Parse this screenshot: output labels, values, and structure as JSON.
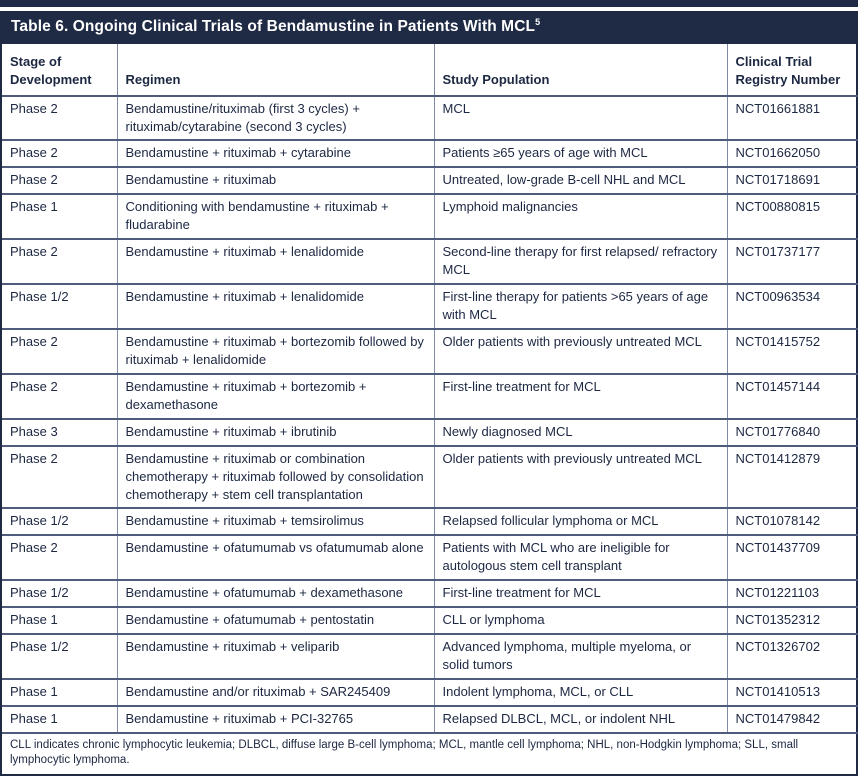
{
  "table": {
    "title": "Table 6. Ongoing Clinical Trials of Bendamustine in Patients With MCL",
    "title_reference": "5",
    "columns": {
      "stage": "Stage of Development",
      "regimen": "Regimen",
      "population": "Study Population",
      "registry": "Clinical Trial Registry Number"
    },
    "rows": [
      {
        "stage": "Phase 2",
        "regimen": "Bendamustine/rituximab (first 3 cycles) + rituximab/cytarabine (second 3 cycles)",
        "population": "MCL",
        "registry": "NCT01661881"
      },
      {
        "stage": "Phase 2",
        "regimen": "Bendamustine + rituximab + cytarabine",
        "population": "Patients ≥65 years of age with MCL",
        "registry": "NCT01662050"
      },
      {
        "stage": "Phase 2",
        "regimen": "Bendamustine + rituximab",
        "population": "Untreated, low-grade B-cell NHL and MCL",
        "registry": "NCT01718691"
      },
      {
        "stage": "Phase 1",
        "regimen": "Conditioning with bendamustine + rituximab + fludarabine",
        "population": "Lymphoid malignancies",
        "registry": "NCT00880815"
      },
      {
        "stage": "Phase 2",
        "regimen": "Bendamustine + rituximab + lenalidomide",
        "population": "Second-line therapy for first relapsed/ refractory MCL",
        "registry": "NCT01737177"
      },
      {
        "stage": "Phase 1/2",
        "regimen": "Bendamustine + rituximab + lenalidomide",
        "population": "First-line therapy for patients >65 years of age with MCL",
        "registry": "NCT00963534"
      },
      {
        "stage": "Phase 2",
        "regimen": "Bendamustine + rituximab + bortezomib followed by rituximab + lenalidomide",
        "population": "Older patients with previously untreated MCL",
        "registry": "NCT01415752"
      },
      {
        "stage": "Phase 2",
        "regimen": "Bendamustine + rituximab + bortezomib + dexamethasone",
        "population": "First-line treatment for MCL",
        "registry": "NCT01457144"
      },
      {
        "stage": "Phase 3",
        "regimen": "Bendamustine + rituximab + ibrutinib",
        "population": "Newly diagnosed MCL",
        "registry": "NCT01776840"
      },
      {
        "stage": "Phase 2",
        "regimen": "Bendamustine + rituximab or combination chemotherapy + rituximab followed by consolidation chemotherapy + stem cell transplantation",
        "population": "Older patients with previously untreated MCL",
        "registry": "NCT01412879"
      },
      {
        "stage": "Phase 1/2",
        "regimen": "Bendamustine + rituximab + temsirolimus",
        "population": "Relapsed follicular lymphoma or MCL",
        "registry": "NCT01078142"
      },
      {
        "stage": "Phase 2",
        "regimen": "Bendamustine + ofatumumab vs ofatumumab alone",
        "population": "Patients with MCL who are ineligible for autologous stem cell transplant",
        "registry": "NCT01437709"
      },
      {
        "stage": "Phase 1/2",
        "regimen": "Bendamustine + ofatumumab + dexamethasone",
        "population": "First-line treatment for MCL",
        "registry": "NCT01221103"
      },
      {
        "stage": "Phase 1",
        "regimen": "Bendamustine + ofatumumab + pentostatin",
        "population": "CLL or lymphoma",
        "registry": "NCT01352312"
      },
      {
        "stage": "Phase 1/2",
        "regimen": "Bendamustine + rituximab + veliparib",
        "population": "Advanced lymphoma, multiple myeloma, or solid tumors",
        "registry": "NCT01326702"
      },
      {
        "stage": "Phase 1",
        "regimen": "Bendamustine and/or rituximab + SAR245409",
        "population": "Indolent lymphoma, MCL, or CLL",
        "registry": "NCT01410513"
      },
      {
        "stage": "Phase 1",
        "regimen": "Bendamustine + rituximab + PCI-32765",
        "population": "Relapsed DLBCL, MCL, or indolent NHL",
        "registry": "NCT01479842"
      }
    ],
    "footnote": "CLL indicates chronic lymphocytic leukemia; DLBCL, diffuse large B-cell lymphoma; MCL, mantle cell lymphoma; NHL, non-Hodgkin lymphoma; SLL, small lymphocytic lymphoma.",
    "colors": {
      "frame_navy": "#1f2a44",
      "row_border": "#4e5b7a",
      "column_border": "#7e89a3",
      "text": "#1c2742",
      "title_text": "#ffffff"
    }
  }
}
